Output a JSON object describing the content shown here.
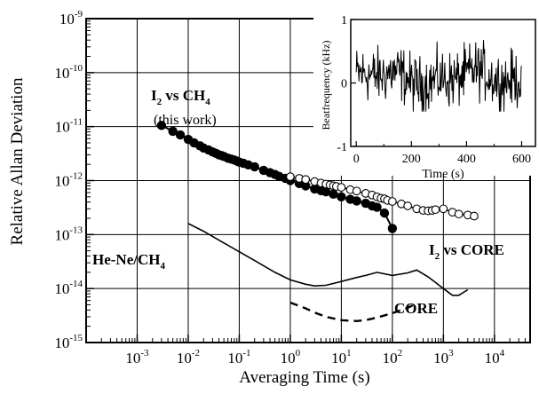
{
  "chart_data": [
    {
      "type": "line",
      "title": "",
      "xlabel": "Averaging Time (s)",
      "ylabel": "Relative Allan Deviation",
      "x_scale": "log",
      "y_scale": "log",
      "xlim": [
        0.0001,
        50000
      ],
      "ylim": [
        1e-15,
        1e-09
      ],
      "x_ticks": [
        {
          "base": "10",
          "exp": "-3",
          "value": 0.001
        },
        {
          "base": "10",
          "exp": "-2",
          "value": 0.01
        },
        {
          "base": "10",
          "exp": "-1",
          "value": 0.1
        },
        {
          "base": "10",
          "exp": "0",
          "value": 1
        },
        {
          "base": "10",
          "exp": "1",
          "value": 10
        },
        {
          "base": "10",
          "exp": "2",
          "value": 100
        },
        {
          "base": "10",
          "exp": "3",
          "value": 1000
        },
        {
          "base": "10",
          "exp": "4",
          "value": 10000
        }
      ],
      "y_ticks": [
        {
          "base": "10",
          "exp": "-15",
          "value": 1e-15
        },
        {
          "base": "10",
          "exp": "-14",
          "value": 1e-14
        },
        {
          "base": "10",
          "exp": "-13",
          "value": 1e-13
        },
        {
          "base": "10",
          "exp": "-12",
          "value": 1e-12
        },
        {
          "base": "10",
          "exp": "-11",
          "value": 1e-11
        },
        {
          "base": "10",
          "exp": "-10",
          "value": 1e-10
        },
        {
          "base": "10",
          "exp": "-9",
          "value": 1e-09
        }
      ],
      "grid": true,
      "series": [
        {
          "name": "I2 vs CH4 (this work)",
          "style": "filled-circles-with-line",
          "color": "#000000",
          "x": [
            0.003,
            0.005,
            0.007,
            0.01,
            0.013,
            0.017,
            0.02,
            0.025,
            0.03,
            0.035,
            0.04,
            0.045,
            0.05,
            0.06,
            0.07,
            0.08,
            0.09,
            0.1,
            0.12,
            0.15,
            0.2,
            0.3,
            0.4,
            0.5,
            0.6,
            0.8,
            1,
            1.5,
            2,
            3,
            4,
            5,
            7,
            10,
            15,
            20,
            30,
            40,
            50,
            70,
            100
          ],
          "y": [
            1.05e-11,
            8.2e-12,
            7e-12,
            5.8e-12,
            5e-12,
            4.4e-12,
            4e-12,
            3.7e-12,
            3.4e-12,
            3.2e-12,
            3e-12,
            2.9e-12,
            2.8e-12,
            2.6e-12,
            2.5e-12,
            2.4e-12,
            2.3e-12,
            2.2e-12,
            2.1e-12,
            1.95e-12,
            1.8e-12,
            1.55e-12,
            1.4e-12,
            1.3e-12,
            1.2e-12,
            1.1e-12,
            1e-12,
            8.8e-13,
            8e-13,
            7e-13,
            6.5e-13,
            6.2e-13,
            5.6e-13,
            5e-13,
            4.5e-13,
            4.2e-13,
            3.8e-13,
            3.4e-13,
            3.2e-13,
            2.5e-13,
            1.3e-13
          ]
        },
        {
          "name": "I2 vs CORE",
          "style": "open-circles-with-line",
          "color": "#000000",
          "x": [
            1,
            1.5,
            2,
            3,
            4,
            5,
            6,
            7,
            8,
            10,
            15,
            20,
            30,
            40,
            50,
            60,
            70,
            80,
            100,
            150,
            200,
            300,
            400,
            500,
            600,
            700,
            1000,
            1500,
            2000,
            3000,
            4000
          ],
          "y": [
            1.18e-12,
            1.1e-12,
            1.05e-12,
            9.6e-13,
            9e-13,
            8.6e-13,
            8.3e-13,
            8e-13,
            7.8e-13,
            7.5e-13,
            6.8e-13,
            6.4e-13,
            5.8e-13,
            5.4e-13,
            5e-13,
            4.7e-13,
            4.6e-13,
            4.3e-13,
            4.1e-13,
            3.7e-13,
            3.4e-13,
            3e-13,
            2.8e-13,
            2.75e-13,
            2.8e-13,
            2.9e-13,
            3e-13,
            2.6e-13,
            2.4e-13,
            2.3e-13,
            2.2e-13
          ]
        },
        {
          "name": "He-Ne/CH4",
          "style": "solid-line",
          "color": "#000000",
          "x": [
            0.01,
            0.02,
            0.05,
            0.1,
            0.2,
            0.5,
            1,
            2,
            3,
            5,
            10,
            20,
            30,
            50,
            100,
            200,
            300,
            500,
            700,
            1000,
            1500,
            2000,
            3000
          ],
          "y": [
            1.6e-13,
            1.15e-13,
            7e-14,
            4.8e-14,
            3.3e-14,
            2e-14,
            1.45e-14,
            1.2e-14,
            1.12e-14,
            1.15e-14,
            1.35e-14,
            1.6e-14,
            1.75e-14,
            2e-14,
            1.75e-14,
            1.95e-14,
            2.2e-14,
            1.65e-14,
            1.3e-14,
            1e-14,
            7.5e-15,
            7.5e-15,
            9.5e-15
          ]
        },
        {
          "name": "CORE",
          "style": "dashed-line",
          "color": "#000000",
          "x": [
            1,
            2,
            3,
            5,
            10,
            20,
            30,
            50,
            100,
            200,
            300
          ],
          "y": [
            5.5e-15,
            4.3e-15,
            3.6e-15,
            3e-15,
            2.6e-15,
            2.5e-15,
            2.6e-15,
            2.9e-15,
            3.5e-15,
            4.4e-15,
            5.3e-15
          ]
        }
      ],
      "annotations": [
        {
          "id": "i2ch4",
          "text": "I",
          "sub": "2",
          "text2": " vs CH",
          "sub2": "4"
        },
        {
          "id": "thiswork",
          "text": "(this work)"
        },
        {
          "id": "i2core",
          "text": "I",
          "sub": "2",
          "text2": " vs CORE"
        },
        {
          "id": "heneCH4",
          "text": "He-Ne/CH",
          "sub": "4"
        },
        {
          "id": "core",
          "text": "CORE"
        }
      ]
    },
    {
      "type": "line",
      "title": "",
      "xlabel": "Time (s)",
      "ylabel": "Beatfrequency (kHz)",
      "xlim": [
        -20,
        650
      ],
      "ylim": [
        -1,
        1
      ],
      "x_ticks": [
        "0",
        "200",
        "400",
        "600"
      ],
      "x_tick_values": [
        0,
        200,
        400,
        600
      ],
      "y_ticks": [
        "-1",
        "0",
        "1"
      ],
      "y_tick_values": [
        -1,
        0,
        1
      ],
      "series": [
        {
          "name": "",
          "color": "#000000",
          "description": "noisy beat frequency trace fluctuating around ~0.1 kHz",
          "t_start": 0,
          "t_end": 600,
          "n_points": 300,
          "mean": 0.08,
          "amplitude": 0.22
        }
      ]
    }
  ]
}
